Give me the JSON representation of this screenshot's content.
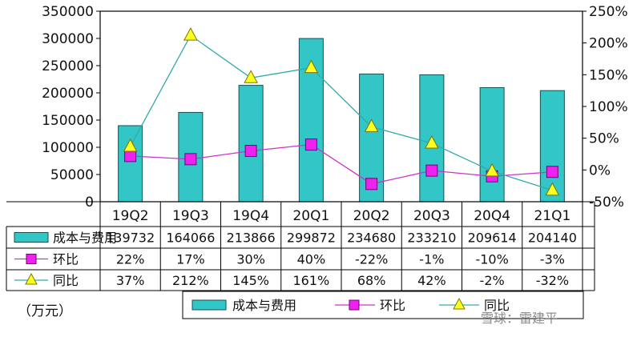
{
  "chart_data": {
    "type": "bar",
    "categories": [
      "19Q2",
      "19Q3",
      "19Q4",
      "20Q1",
      "20Q2",
      "20Q3",
      "20Q4",
      "21Q1"
    ],
    "series": [
      {
        "name": "成本与费用",
        "kind": "bar",
        "axis": "left",
        "color": "#33c6c6",
        "values": [
          139732,
          164066,
          213866,
          299872,
          234680,
          233210,
          209614,
          204140
        ],
        "labels": [
          "139732",
          "164066",
          "213866",
          "299872",
          "234680",
          "233210",
          "209614",
          "204140"
        ]
      },
      {
        "name": "环比",
        "kind": "line",
        "axis": "right",
        "color": "#cc33cc",
        "marker": "square",
        "values": [
          22,
          17,
          30,
          40,
          -22,
          -1,
          -10,
          -3
        ],
        "labels": [
          "22%",
          "17%",
          "30%",
          "40%",
          "-22%",
          "-1%",
          "-10%",
          "-3%"
        ]
      },
      {
        "name": "同比",
        "kind": "line",
        "axis": "right",
        "color": "#33aaaa",
        "marker": "triangle",
        "values": [
          37,
          212,
          145,
          161,
          68,
          42,
          -2,
          -32
        ],
        "labels": [
          "37%",
          "212%",
          "145%",
          "161%",
          "68%",
          "42%",
          "-2%",
          "-32%"
        ]
      }
    ],
    "yleft": {
      "min": 0,
      "max": 350000,
      "ticks": [
        "0",
        "50000",
        "100000",
        "150000",
        "200000",
        "250000",
        "300000",
        "350000"
      ]
    },
    "yright": {
      "min": -50,
      "max": 250,
      "ticks": [
        "-50%",
        "0%",
        "50%",
        "100%",
        "150%",
        "200%",
        "250%"
      ]
    },
    "legend": {
      "position": "bottom",
      "items": [
        "成本与费用",
        "环比",
        "同比"
      ]
    },
    "table": {
      "headers": [
        "19Q2",
        "19Q3",
        "19Q4",
        "20Q1",
        "20Q2",
        "20Q3",
        "20Q4",
        "21Q1"
      ]
    },
    "unit": "（万元）",
    "watermark": "雪球：雷建平"
  }
}
